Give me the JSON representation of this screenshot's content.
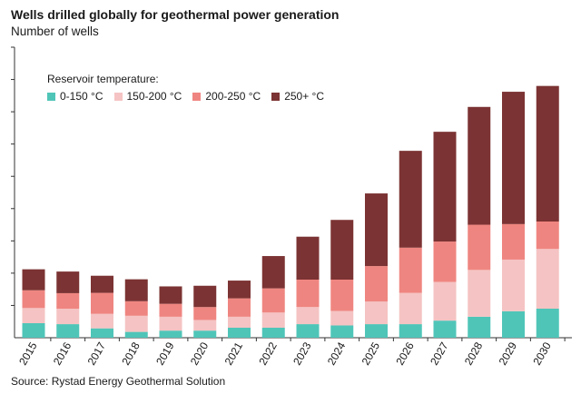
{
  "chart_data": {
    "type": "bar",
    "stacked": true,
    "title": "Wells drilled globally for geothermal power generation",
    "subtitle": "Number of wells",
    "xlabel": "",
    "ylabel": "Number of wells",
    "ylim": [
      0,
      900
    ],
    "grid": false,
    "source": "Source: Rystad Energy Geothermal Solution",
    "legend_title": "Reservoir temperature:",
    "legend_position": "top-left",
    "categories": [
      "2015",
      "2016",
      "2017",
      "2018",
      "2019",
      "2020",
      "2021",
      "2022",
      "2023",
      "2024",
      "2025",
      "2026",
      "2027",
      "2028",
      "2029",
      "2030"
    ],
    "series": [
      {
        "name": "0-150 °C",
        "color": "#4fc5b8",
        "values": [
          45,
          42,
          29,
          18,
          22,
          22,
          31,
          31,
          42,
          38,
          42,
          42,
          53,
          65,
          82,
          90
        ]
      },
      {
        "name": "150-200 °C",
        "color": "#f5c3c3",
        "values": [
          47,
          48,
          45,
          50,
          43,
          33,
          34,
          47,
          53,
          45,
          70,
          97,
          120,
          145,
          160,
          185
        ]
      },
      {
        "name": "200-250 °C",
        "color": "#ef8580",
        "values": [
          55,
          48,
          65,
          45,
          40,
          40,
          57,
          75,
          85,
          97,
          110,
          140,
          125,
          140,
          110,
          85
        ]
      },
      {
        "name": "250+ °C",
        "color": "#7c3333",
        "values": [
          65,
          67,
          53,
          68,
          54,
          66,
          55,
          100,
          133,
          185,
          225,
          300,
          340,
          365,
          410,
          420
        ]
      }
    ]
  }
}
